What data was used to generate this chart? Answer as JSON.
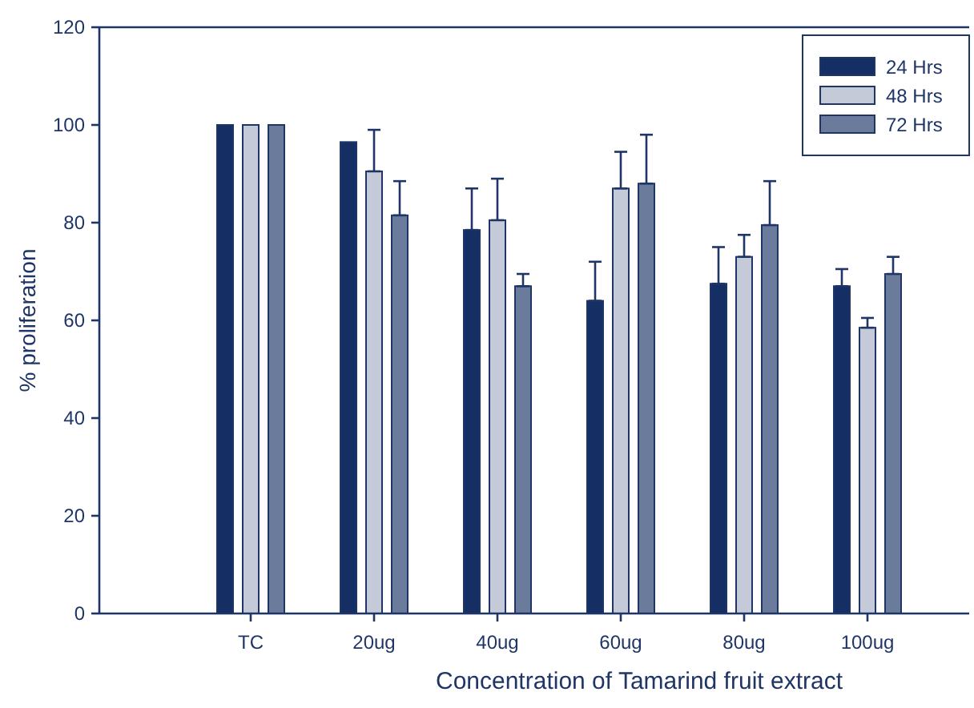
{
  "chart_data": {
    "type": "bar",
    "xlabel": "Concentration of Tamarind fruit extract",
    "ylabel": "% proliferation",
    "categories": [
      "TC",
      "20ug",
      "40ug",
      "60ug",
      "80ug",
      "100ug"
    ],
    "series": [
      {
        "name": "24 Hrs",
        "color": "#152e63",
        "values": [
          100,
          96.5,
          78.5,
          64,
          67.5,
          67
        ],
        "errors": [
          null,
          null,
          [
            78.5,
            87
          ],
          [
            64,
            72
          ],
          [
            67.5,
            75
          ],
          [
            67,
            70.5
          ]
        ]
      },
      {
        "name": "48 Hrs",
        "color": "#c5cad8",
        "values": [
          100,
          90.5,
          80.5,
          87,
          73,
          58.5
        ],
        "errors": [
          null,
          [
            90.5,
            99
          ],
          [
            80.5,
            89
          ],
          [
            87,
            94.5
          ],
          [
            73,
            77.5
          ],
          [
            58.5,
            60.5
          ]
        ]
      },
      {
        "name": "72 Hrs",
        "color": "#6a7b9c",
        "values": [
          100,
          81.5,
          67,
          88,
          79.5,
          69.5
        ],
        "errors": [
          null,
          [
            81.5,
            88.5
          ],
          [
            67,
            69.5
          ],
          [
            88,
            98
          ],
          [
            79.5,
            88.5
          ],
          [
            69.5,
            73
          ]
        ]
      }
    ],
    "ylim": [
      0,
      120
    ],
    "yticks": [
      0,
      20,
      40,
      60,
      80,
      100,
      120
    ],
    "grid": false,
    "legend": "top right"
  }
}
